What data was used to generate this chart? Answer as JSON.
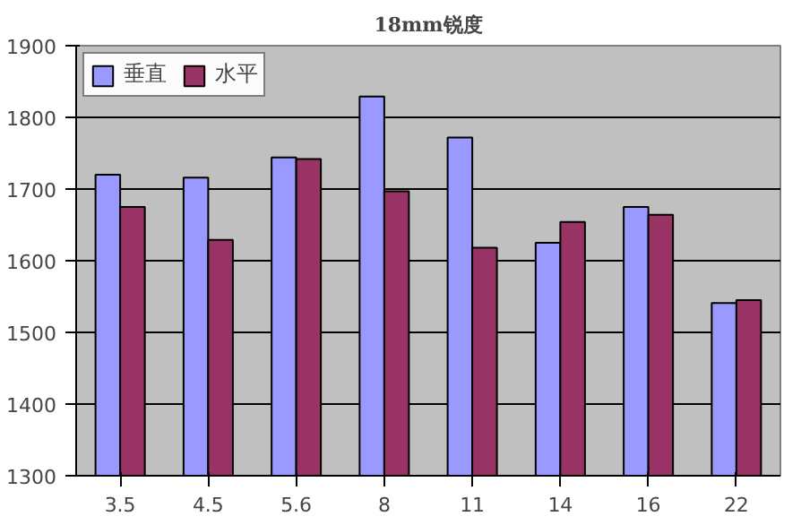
{
  "chart_data": {
    "type": "bar",
    "title": "18mm锐度",
    "categories": [
      "3.5",
      "4.5",
      "5.6",
      "8",
      "11",
      "14",
      "16",
      "22"
    ],
    "series": [
      {
        "name": "垂直",
        "color": "#9999ff",
        "values": [
          1720,
          1716,
          1744,
          1829,
          1772,
          1625,
          1675,
          1541
        ]
      },
      {
        "name": "水平",
        "color": "#993366",
        "values": [
          1675,
          1629,
          1742,
          1697,
          1618,
          1654,
          1664,
          1545
        ]
      }
    ],
    "ylim": [
      1300,
      1900
    ],
    "yticks": [
      1300,
      1400,
      1500,
      1600,
      1700,
      1800,
      1900
    ],
    "grid": "y",
    "legend": "top left"
  }
}
